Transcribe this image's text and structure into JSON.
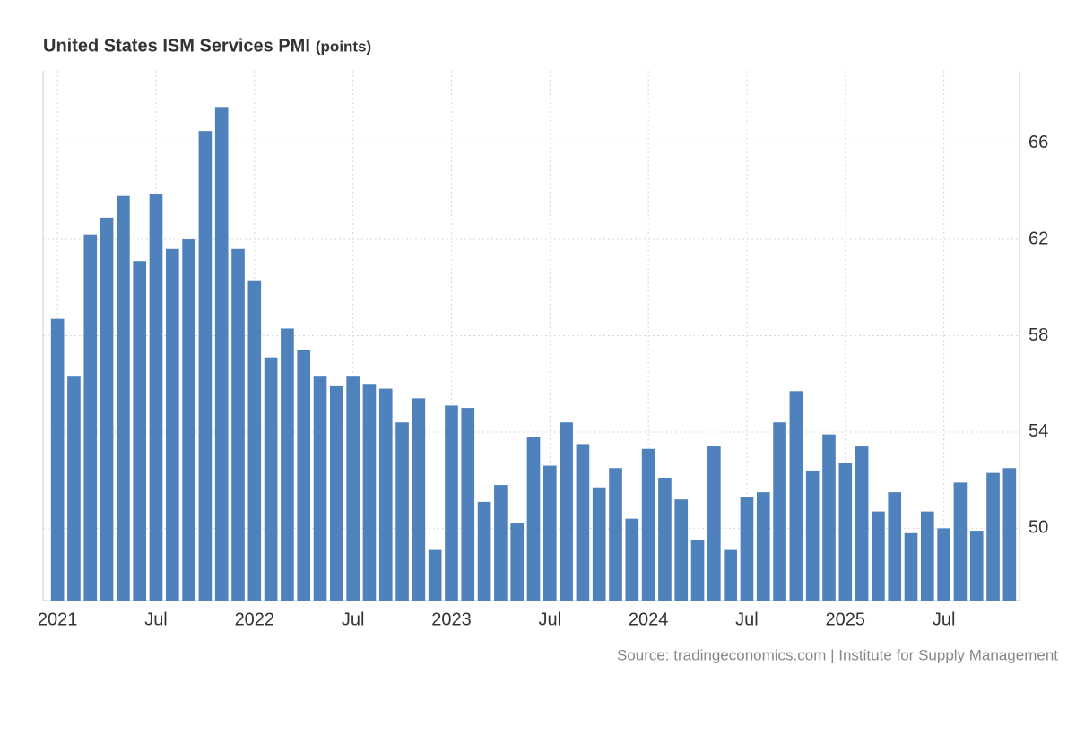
{
  "chart_data": {
    "type": "bar",
    "title": "United States ISM Services PMI",
    "unit": "(points)",
    "source": "Source: tradingeconomics.com | Institute for Supply Management",
    "categories": [
      "2021",
      null,
      null,
      null,
      null,
      null,
      "Jul",
      null,
      null,
      null,
      null,
      null,
      "2022",
      null,
      null,
      null,
      null,
      null,
      "Jul",
      null,
      null,
      null,
      null,
      null,
      "2023",
      null,
      null,
      null,
      null,
      null,
      "Jul",
      null,
      null,
      null,
      null,
      null,
      "2024",
      null,
      null,
      null,
      null,
      null,
      "Jul",
      null,
      null,
      null,
      null,
      null,
      "2025",
      null,
      null,
      null,
      null,
      null,
      "Jul",
      null,
      null,
      null,
      null
    ],
    "values": [
      58.7,
      56.3,
      62.2,
      62.9,
      63.8,
      61.1,
      63.9,
      61.6,
      62.0,
      66.5,
      67.5,
      61.6,
      60.3,
      57.1,
      58.3,
      57.4,
      56.3,
      55.9,
      56.3,
      56.0,
      55.8,
      54.4,
      55.4,
      49.1,
      55.1,
      55.0,
      51.1,
      51.8,
      50.2,
      53.8,
      52.6,
      54.4,
      53.5,
      51.7,
      52.5,
      50.4,
      53.3,
      52.1,
      51.2,
      49.5,
      53.4,
      49.1,
      51.3,
      51.5,
      54.4,
      55.7,
      52.4,
      53.9,
      52.7,
      53.4,
      50.7,
      51.5,
      49.8,
      50.7,
      50.0,
      51.9,
      49.9,
      52.3,
      52.5
    ],
    "color": "#4f81bd",
    "ylim": [
      47,
      69
    ],
    "yticks": [
      50,
      54,
      58,
      62,
      66
    ],
    "grid": true
  }
}
